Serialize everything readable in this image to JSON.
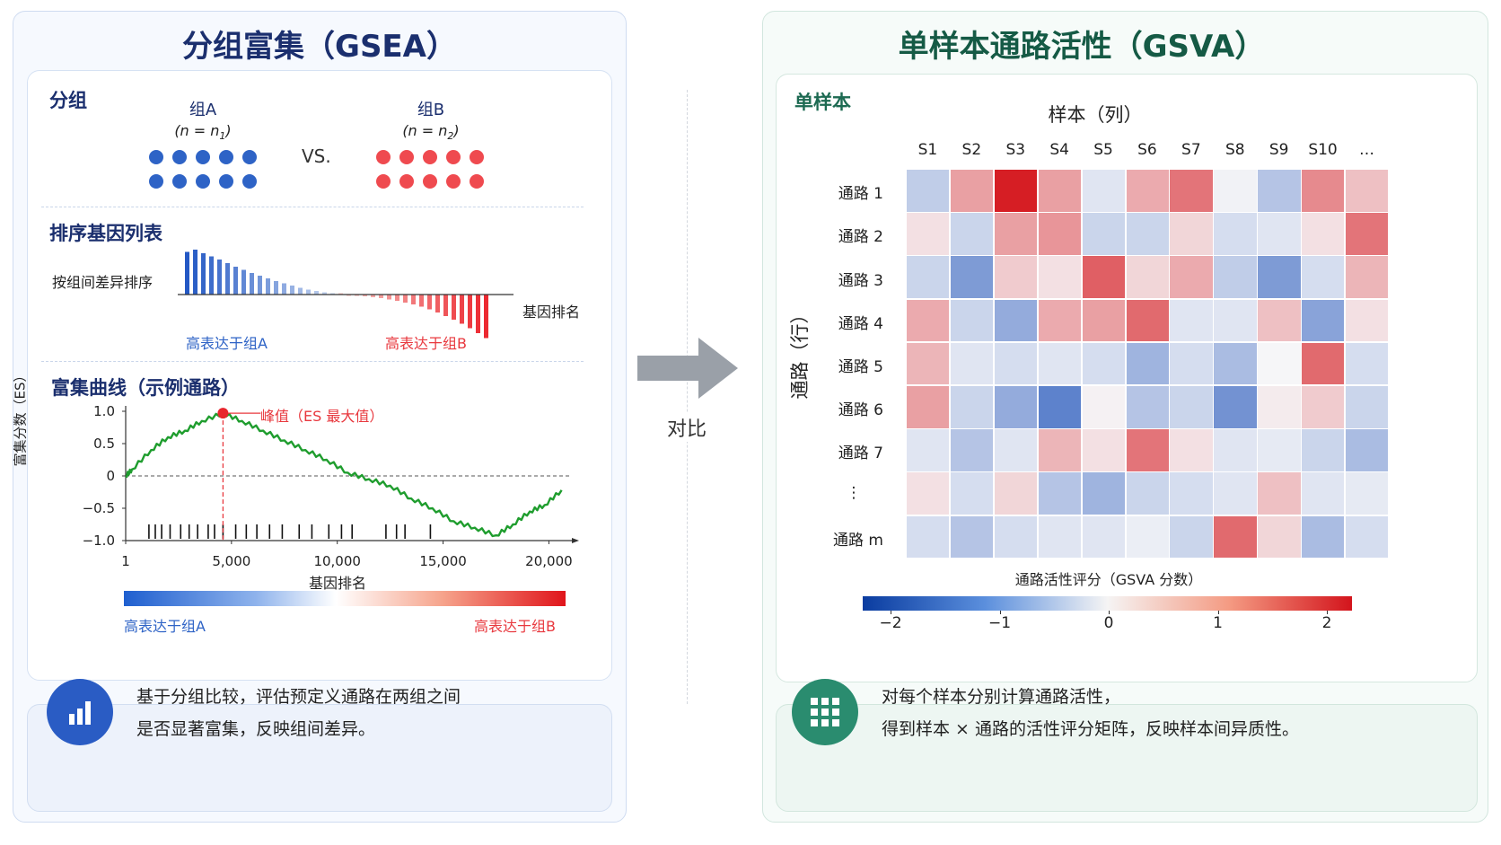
{
  "left": {
    "title": "分组富集（GSEA）",
    "grouping": {
      "section_title": "分组",
      "group_a": "组A",
      "group_a_n": "(n = n",
      "group_a_sub": "1",
      "group_b": "组B",
      "group_b_n": "(n = n",
      "group_b_sub": "2",
      "close_paren": ")",
      "vs": "VS."
    },
    "ranked": {
      "section_title": "排序基因列表",
      "sort_label": "按组间差异排序",
      "rank_label": "基因排名",
      "high_a": "高表达于组A",
      "high_b": "高表达于组B"
    },
    "curve": {
      "section_title": "富集曲线（示例通路）",
      "ylabel": "富集分数（ES）",
      "xlabel": "基因排名",
      "peak_label": "峰值（ES 最大值）",
      "yticks": [
        "1.0",
        "0.5",
        "0",
        "−0.5",
        "−1.0"
      ],
      "xticks": [
        "1",
        "5,000",
        "10,000",
        "15,000",
        "20,000"
      ],
      "gradient_low": "高表达于组A",
      "gradient_high": "高表达于组B"
    },
    "note": {
      "line1": "基于分组比较，评估预定义通路在两组之间",
      "line2": "是否显著富集，反映组间差异。"
    },
    "colors": {
      "title": "#1b2f6e",
      "blue": "#2e63c6",
      "red": "#ef4a4f",
      "green": "#1f9d2e"
    }
  },
  "middle": {
    "compare_label": "对比"
  },
  "right": {
    "title": "单样本通路活性（GSVA）",
    "section_title": "单样本",
    "columns_title": "样本（列）",
    "rows_title": "通路（行）",
    "colorbar_title": "通路活性评分（GSVA 分数）",
    "colorbar_ticks": [
      "−2",
      "−1",
      "0",
      "1",
      "2"
    ],
    "samples": [
      "S1",
      "S2",
      "S3",
      "S4",
      "S5",
      "S6",
      "S7",
      "S8",
      "S9",
      "S10",
      "…"
    ],
    "pathways": [
      "通路 1",
      "通路 2",
      "通路 3",
      "通路 4",
      "通路 5",
      "通路 6",
      "通路 7",
      "⋮",
      "通路 m"
    ],
    "note": {
      "line1": "对每个样本分别计算通路活性，",
      "line2": "得到样本 × 通路的活性评分矩阵，反映样本间异质性。"
    },
    "colors": {
      "title": "#155a45",
      "section": "#1d6a52",
      "icon": "#2a8c6f"
    }
  },
  "chart_data": {
    "type": "heatmap",
    "title": "",
    "xlabel": "样本（列）",
    "ylabel": "通路（行）",
    "color_range": [
      -2,
      2
    ],
    "columns": [
      "S1",
      "S2",
      "S3",
      "S4",
      "S5",
      "S6",
      "S7",
      "S8",
      "S9",
      "S10",
      "…"
    ],
    "rows": [
      "通路 1",
      "通路 2",
      "通路 3",
      "通路 4",
      "通路 5",
      "通路 6",
      "通路 7",
      "⋮",
      "通路 m"
    ],
    "values": [
      [
        -0.5,
        0.8,
        2.0,
        0.8,
        -0.2,
        0.7,
        1.2,
        -0.05,
        -0.6,
        1.0,
        0.5
      ],
      [
        0.2,
        -0.4,
        0.8,
        0.9,
        -0.4,
        -0.4,
        0.3,
        -0.3,
        -0.2,
        0.2,
        1.2
      ],
      [
        -0.4,
        -1.1,
        0.4,
        0.2,
        1.4,
        0.3,
        0.7,
        -0.5,
        -1.1,
        -0.3,
        0.6
      ],
      [
        0.7,
        -0.4,
        -0.9,
        0.7,
        0.8,
        1.3,
        -0.2,
        -0.2,
        0.5,
        -1.0,
        0.2
      ],
      [
        0.6,
        -0.2,
        -0.3,
        -0.2,
        -0.3,
        -0.8,
        -0.3,
        -0.7,
        0.0,
        1.3,
        -0.3
      ],
      [
        0.8,
        -0.4,
        -0.9,
        -1.4,
        0.05,
        -0.6,
        -0.4,
        -1.2,
        0.1,
        0.4,
        -0.4
      ],
      [
        -0.2,
        -0.6,
        -0.2,
        0.6,
        0.2,
        1.2,
        0.2,
        -0.2,
        -0.15,
        -0.4,
        -0.7
      ],
      [
        0.2,
        -0.3,
        0.3,
        -0.6,
        -0.8,
        -0.4,
        -0.3,
        -0.2,
        0.5,
        -0.2,
        -0.15
      ],
      [
        -0.3,
        -0.6,
        -0.3,
        -0.2,
        -0.2,
        -0.1,
        -0.4,
        1.3,
        0.3,
        -0.7,
        -0.3
      ]
    ],
    "gsea_curve": {
      "type": "line",
      "xlabel": "基因排名",
      "ylabel": "富集分数（ES）",
      "xlim": [
        1,
        21000
      ],
      "ylim": [
        -1.0,
        1.0
      ],
      "x": [
        1,
        300,
        1200,
        2000,
        2800,
        3600,
        4600,
        5500,
        6500,
        7500,
        8500,
        9500,
        10500,
        11500,
        12500,
        13500,
        14500,
        15500,
        16500,
        17500,
        18300,
        19100,
        19800,
        20600
      ],
      "y": [
        0.0,
        0.1,
        0.4,
        0.6,
        0.7,
        0.85,
        0.97,
        0.85,
        0.7,
        0.55,
        0.4,
        0.25,
        0.05,
        -0.05,
        -0.15,
        -0.35,
        -0.5,
        -0.7,
        -0.8,
        -0.92,
        -0.75,
        -0.55,
        -0.45,
        -0.22
      ],
      "peak_x": 4600,
      "hits": [
        1100,
        1400,
        1700,
        2100,
        2600,
        3000,
        3400,
        3900,
        4200,
        4600,
        5200,
        5700,
        6200,
        6800,
        7400,
        8200,
        8800,
        9600,
        10200,
        10700,
        12300,
        12800,
        13200,
        14400
      ]
    },
    "ranked_bars": {
      "type": "bar",
      "values": [
        0.95,
        1.0,
        0.92,
        0.85,
        0.78,
        0.7,
        0.62,
        0.55,
        0.48,
        0.42,
        0.36,
        0.3,
        0.25,
        0.2,
        0.15,
        0.11,
        0.08,
        0.05,
        0.03,
        0.01,
        -0.01,
        -0.02,
        -0.04,
        -0.06,
        -0.08,
        -0.11,
        -0.14,
        -0.18,
        -0.22,
        -0.27,
        -0.33,
        -0.4,
        -0.48,
        -0.56,
        -0.65,
        -0.75,
        -0.86,
        -0.97
      ]
    }
  }
}
